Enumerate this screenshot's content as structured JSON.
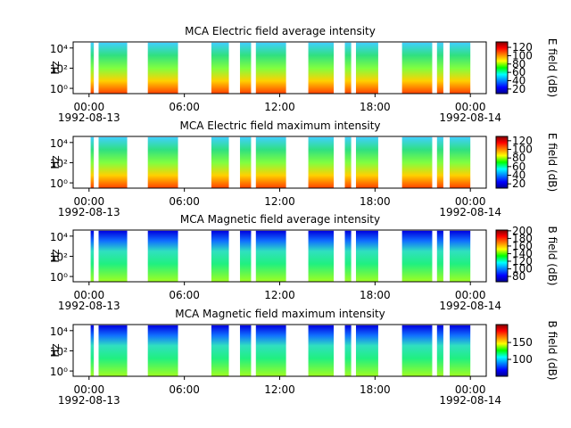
{
  "chart_data": [
    {
      "type": "spectrogram",
      "title": "MCA  Electric field average intensity",
      "ylabel": "Hz",
      "yscale": "log",
      "cmap": "jet",
      "ylim": [
        0.3,
        40000
      ],
      "yticks": [
        {
          "value": 1,
          "label": "10⁰"
        },
        {
          "value": 100,
          "label": "10²"
        },
        {
          "value": 10000,
          "label": "10⁴"
        }
      ],
      "xlim": [
        -1,
        25
      ],
      "xticks": [
        {
          "value": 0,
          "label": "00:00"
        },
        {
          "value": 6,
          "label": "06:00"
        },
        {
          "value": 12,
          "label": "12:00"
        },
        {
          "value": 18,
          "label": "18:00"
        },
        {
          "value": 24,
          "label": "00:00"
        }
      ],
      "xtick_dates": [
        {
          "value": 0,
          "label": "1992-08-13"
        },
        {
          "value": 24,
          "label": "1992-08-14"
        }
      ],
      "segments": [
        [
          0.1,
          0.3
        ],
        [
          0.6,
          2.4
        ],
        [
          3.7,
          5.6
        ],
        [
          7.7,
          8.8
        ],
        [
          9.5,
          10.2
        ],
        [
          10.5,
          12.4
        ],
        [
          13.8,
          15.4
        ],
        [
          16.1,
          16.5
        ],
        [
          16.8,
          18.2
        ],
        [
          19.7,
          21.6
        ],
        [
          21.9,
          22.3
        ],
        [
          22.7,
          24.0
        ]
      ],
      "colorbar_label": "E field (dB)",
      "clim": [
        9,
        133
      ],
      "cticks": [
        20,
        40,
        60,
        80,
        100,
        120
      ]
    },
    {
      "type": "spectrogram",
      "title": "MCA  Electric field maximum intensity",
      "ylabel": "Hz",
      "yscale": "log",
      "cmap": "jet",
      "ylim": [
        0.3,
        40000
      ],
      "yticks": [
        {
          "value": 1,
          "label": "10⁰"
        },
        {
          "value": 100,
          "label": "10²"
        },
        {
          "value": 10000,
          "label": "10⁴"
        }
      ],
      "xlim": [
        -1,
        25
      ],
      "xticks": [
        {
          "value": 0,
          "label": "00:00"
        },
        {
          "value": 6,
          "label": "06:00"
        },
        {
          "value": 12,
          "label": "12:00"
        },
        {
          "value": 18,
          "label": "18:00"
        },
        {
          "value": 24,
          "label": "00:00"
        }
      ],
      "xtick_dates": [
        {
          "value": 0,
          "label": "1992-08-13"
        },
        {
          "value": 24,
          "label": "1992-08-14"
        }
      ],
      "segments": [
        [
          0.1,
          0.3
        ],
        [
          0.6,
          2.4
        ],
        [
          3.7,
          5.6
        ],
        [
          7.7,
          8.8
        ],
        [
          9.5,
          10.2
        ],
        [
          10.5,
          12.4
        ],
        [
          13.8,
          15.4
        ],
        [
          16.1,
          16.5
        ],
        [
          16.8,
          18.2
        ],
        [
          19.7,
          21.6
        ],
        [
          21.9,
          22.3
        ],
        [
          22.7,
          24.0
        ]
      ],
      "colorbar_label": "E field (dB)",
      "clim": [
        10,
        130
      ],
      "cticks": [
        20,
        40,
        60,
        80,
        100,
        120
      ]
    },
    {
      "type": "spectrogram",
      "title": "MCA  Magnetic field average intensity",
      "ylabel": "Hz",
      "yscale": "log",
      "cmap": "jet",
      "ylim": [
        0.3,
        40000
      ],
      "yticks": [
        {
          "value": 1,
          "label": "10⁰"
        },
        {
          "value": 100,
          "label": "10²"
        },
        {
          "value": 10000,
          "label": "10⁴"
        }
      ],
      "xlim": [
        -1,
        25
      ],
      "xticks": [
        {
          "value": 0,
          "label": "00:00"
        },
        {
          "value": 6,
          "label": "06:00"
        },
        {
          "value": 12,
          "label": "12:00"
        },
        {
          "value": 18,
          "label": "18:00"
        },
        {
          "value": 24,
          "label": "00:00"
        }
      ],
      "xtick_dates": [
        {
          "value": 0,
          "label": "1992-08-13"
        },
        {
          "value": 24,
          "label": "1992-08-14"
        }
      ],
      "segments": [
        [
          0.1,
          0.3
        ],
        [
          0.6,
          2.4
        ],
        [
          3.7,
          5.6
        ],
        [
          7.7,
          8.8
        ],
        [
          9.5,
          10.2
        ],
        [
          10.5,
          12.4
        ],
        [
          13.8,
          15.4
        ],
        [
          16.1,
          16.5
        ],
        [
          16.8,
          18.2
        ],
        [
          19.7,
          21.6
        ],
        [
          21.9,
          22.3
        ],
        [
          22.7,
          24.0
        ]
      ],
      "colorbar_label": "B field (dB)",
      "clim": [
        66,
        202
      ],
      "cticks": [
        80,
        100,
        120,
        140,
        160,
        180,
        200
      ]
    },
    {
      "type": "spectrogram",
      "title": "MCA  Magnetic field maximum intensity",
      "ylabel": "Hz",
      "yscale": "log",
      "cmap": "jet",
      "ylim": [
        0.3,
        40000
      ],
      "yticks": [
        {
          "value": 1,
          "label": "10⁰"
        },
        {
          "value": 100,
          "label": "10²"
        },
        {
          "value": 10000,
          "label": "10⁴"
        }
      ],
      "xlim": [
        -1,
        25
      ],
      "xticks": [
        {
          "value": 0,
          "label": "00:00"
        },
        {
          "value": 6,
          "label": "06:00"
        },
        {
          "value": 12,
          "label": "12:00"
        },
        {
          "value": 18,
          "label": "18:00"
        },
        {
          "value": 24,
          "label": "00:00"
        }
      ],
      "xtick_dates": [
        {
          "value": 0,
          "label": "1992-08-13"
        },
        {
          "value": 24,
          "label": "1992-08-14"
        }
      ],
      "segments": [
        [
          0.1,
          0.3
        ],
        [
          0.6,
          2.4
        ],
        [
          3.7,
          5.6
        ],
        [
          7.7,
          8.8
        ],
        [
          9.5,
          10.2
        ],
        [
          10.5,
          12.4
        ],
        [
          13.8,
          15.4
        ],
        [
          16.1,
          16.5
        ],
        [
          16.8,
          18.2
        ],
        [
          19.7,
          21.6
        ],
        [
          21.9,
          22.3
        ],
        [
          22.7,
          24.0
        ]
      ],
      "colorbar_label": "B field (dB)",
      "clim": [
        50,
        203
      ],
      "cticks": [
        100,
        150
      ]
    }
  ]
}
